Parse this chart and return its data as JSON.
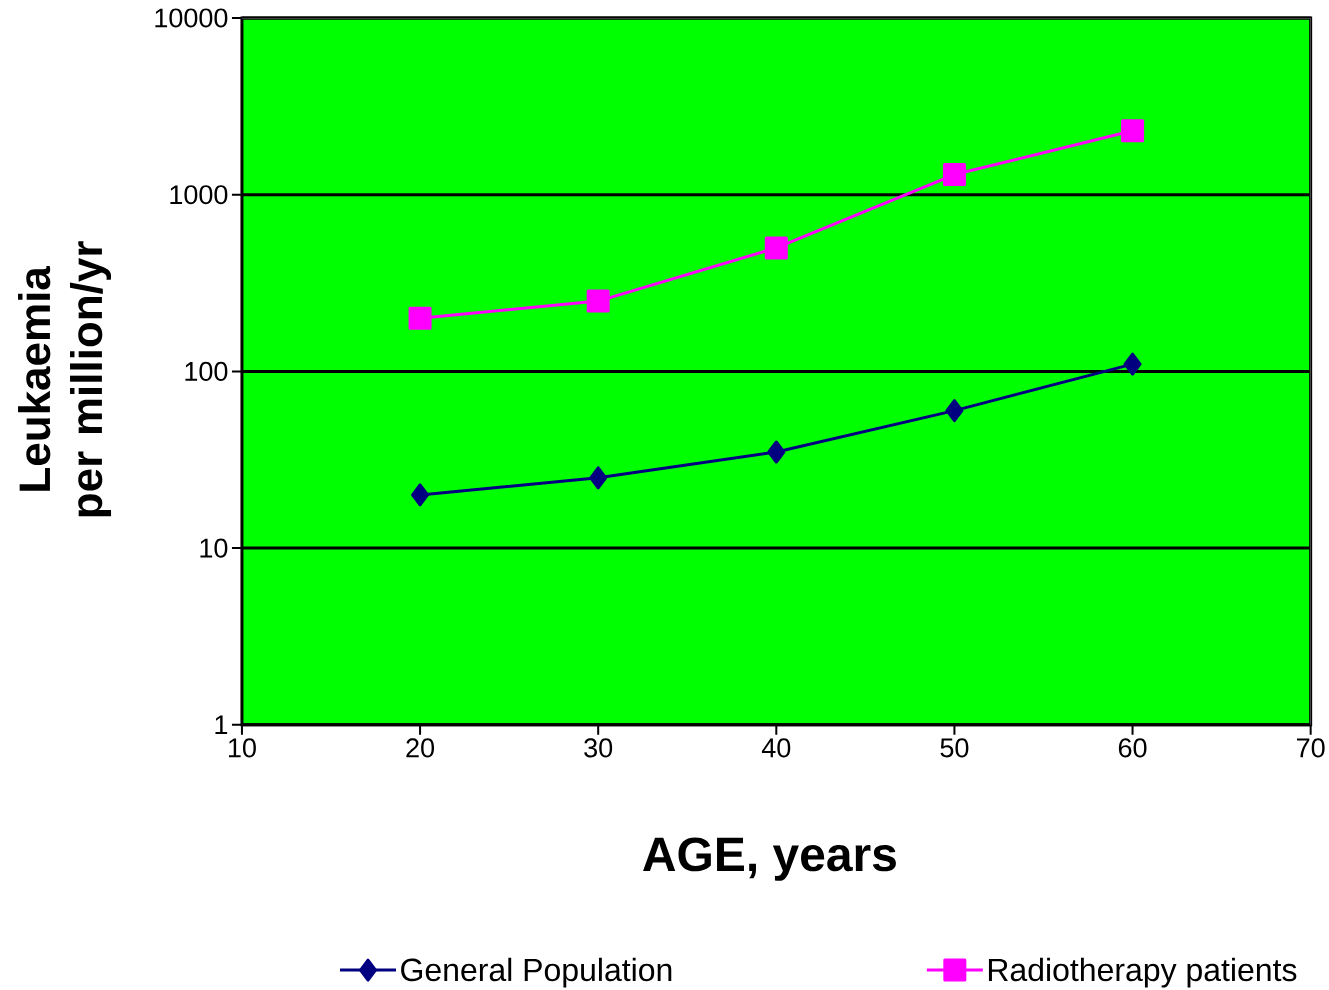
{
  "chart_data": {
    "type": "line",
    "xlabel": "AGE, years",
    "ylabel": "Leukaemia per million/yr",
    "x": [
      20,
      30,
      40,
      50,
      60
    ],
    "series": [
      {
        "name": "General Population",
        "color": "#000080",
        "marker": "diamond",
        "values": [
          20,
          25,
          35,
          60,
          110
        ]
      },
      {
        "name": "Radiotherapy patients",
        "color": "#ff00ff",
        "marker": "square",
        "values": [
          200,
          250,
          500,
          1300,
          2300
        ]
      }
    ],
    "log": "y",
    "xlim": [
      10,
      70
    ],
    "ylim": [
      1,
      10000
    ],
    "xticks": [
      10,
      20,
      30,
      40,
      50,
      60,
      70
    ],
    "yticks": [
      1,
      10,
      100,
      1000,
      10000
    ],
    "grid": "y",
    "legend": "bottom",
    "line_style": "solid"
  }
}
